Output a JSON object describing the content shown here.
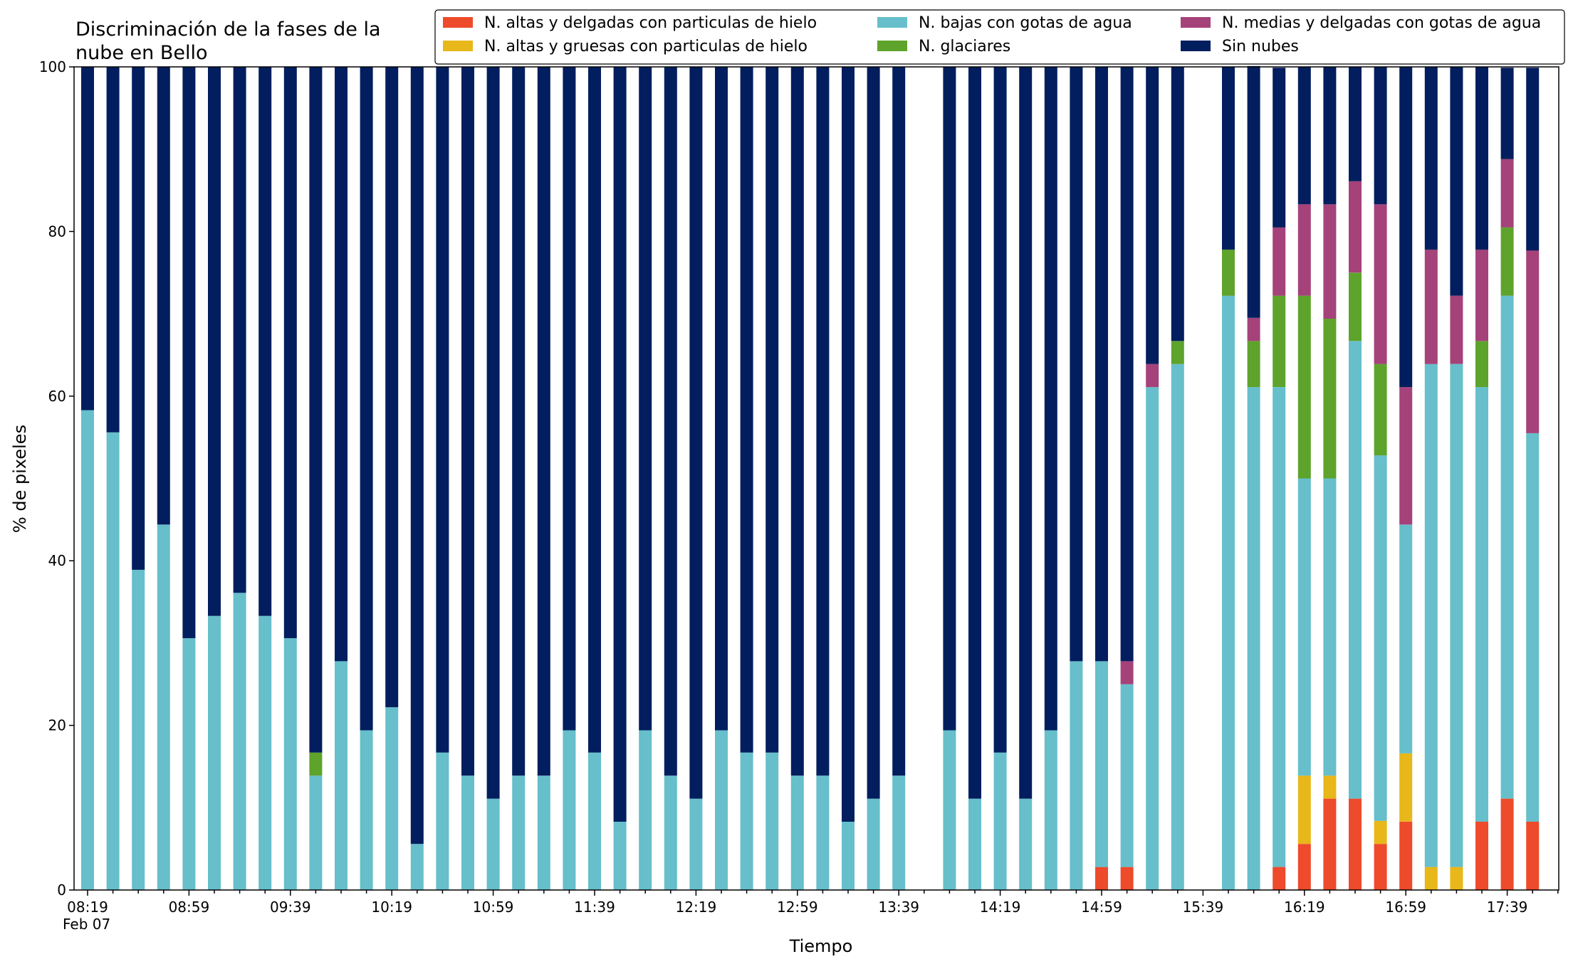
{
  "chart_data": {
    "type": "bar",
    "stacked": true,
    "title_lines": [
      "Discriminación de la fases de la",
      "nube en Bello"
    ],
    "xlabel": "Tiempo",
    "ylabel": "% de pixeles",
    "ylim": [
      0,
      100
    ],
    "yticks": [
      0,
      20,
      40,
      60,
      80,
      100
    ],
    "x_tick_labels": [
      "08:19",
      "08:59",
      "09:39",
      "10:19",
      "10:59",
      "11:39",
      "12:19",
      "12:59",
      "13:39",
      "14:19",
      "14:59",
      "15:39",
      "16:19",
      "16:59",
      "17:39"
    ],
    "x_date_label": "Feb 07",
    "grid": false,
    "legend_position": "top-right",
    "categories": [
      "08:19",
      "08:29",
      "08:39",
      "08:49",
      "08:59",
      "09:09",
      "09:19",
      "09:29",
      "09:39",
      "09:49",
      "09:59",
      "10:09",
      "10:19",
      "10:29",
      "10:39",
      "10:49",
      "10:59",
      "11:09",
      "11:19",
      "11:29",
      "11:39",
      "11:49",
      "11:59",
      "12:09",
      "12:19",
      "12:29",
      "12:39",
      "12:49",
      "12:59",
      "13:09",
      "13:19",
      "13:29",
      "13:39",
      "13:49",
      "13:59",
      "14:09",
      "14:19",
      "14:29",
      "14:39",
      "14:49",
      "14:59",
      "15:09",
      "15:19",
      "15:29",
      "15:39",
      "15:49",
      "15:59",
      "16:09",
      "16:19",
      "16:29",
      "16:39",
      "16:49",
      "16:59",
      "17:09",
      "17:19",
      "17:29",
      "17:39",
      "17:49"
    ],
    "series": [
      {
        "name": "N. altas y delgadas con particulas de hielo",
        "color": "#ee4a2c",
        "values": [
          0,
          0,
          0,
          0,
          0,
          0,
          0,
          0,
          0,
          0,
          0,
          0,
          0,
          0,
          0,
          0,
          0,
          0,
          0,
          0,
          0,
          0,
          0,
          0,
          0,
          0,
          0,
          0,
          0,
          0,
          0,
          0,
          0,
          null,
          0,
          0,
          0,
          0,
          0,
          0,
          2.8,
          2.8,
          0,
          0,
          null,
          0,
          0,
          2.8,
          5.6,
          11.1,
          11.1,
          5.6,
          8.3,
          0,
          0,
          8.3,
          11.1,
          8.3
        ]
      },
      {
        "name": "N. altas y gruesas con particulas de hielo",
        "color": "#e8b71a",
        "values": [
          0,
          0,
          0,
          0,
          0,
          0,
          0,
          0,
          0,
          0,
          0,
          0,
          0,
          0,
          0,
          0,
          0,
          0,
          0,
          0,
          0,
          0,
          0,
          0,
          0,
          0,
          0,
          0,
          0,
          0,
          0,
          0,
          0,
          null,
          0,
          0,
          0,
          0,
          0,
          0,
          0,
          0,
          0,
          0,
          null,
          0,
          0,
          0,
          8.3,
          2.8,
          0,
          2.8,
          8.3,
          2.8,
          2.8,
          0,
          0,
          0
        ]
      },
      {
        "name": "N. bajas con gotas de agua",
        "color": "#66bfcb",
        "values": [
          58.3,
          55.6,
          38.9,
          44.4,
          30.6,
          33.3,
          36.1,
          33.3,
          30.6,
          13.9,
          27.8,
          19.4,
          22.2,
          5.6,
          16.7,
          13.9,
          11.1,
          13.9,
          13.9,
          19.4,
          16.7,
          8.3,
          19.4,
          13.9,
          11.1,
          19.4,
          16.7,
          16.7,
          13.9,
          13.9,
          8.3,
          11.1,
          13.9,
          null,
          19.4,
          11.1,
          16.7,
          11.1,
          19.4,
          27.8,
          25.0,
          22.2,
          61.1,
          63.9,
          null,
          72.2,
          61.1,
          58.3,
          36.1,
          36.1,
          55.6,
          44.4,
          27.8,
          61.1,
          61.1,
          52.8,
          61.1,
          47.2
        ]
      },
      {
        "name": "N. glaciares",
        "color": "#5ea32b",
        "values": [
          0,
          0,
          0,
          0,
          0,
          0,
          0,
          0,
          0,
          2.8,
          0,
          0,
          0,
          0,
          0,
          0,
          0,
          0,
          0,
          0,
          0,
          0,
          0,
          0,
          0,
          0,
          0,
          0,
          0,
          0,
          0,
          0,
          0,
          null,
          0,
          0,
          0,
          0,
          0,
          0,
          0,
          0,
          0,
          2.8,
          null,
          5.6,
          5.6,
          11.1,
          22.2,
          19.4,
          8.3,
          11.1,
          0,
          0,
          0,
          5.6,
          8.3,
          0
        ]
      },
      {
        "name": "N. medias y delgadas con gotas de agua",
        "color": "#a5427a",
        "values": [
          0,
          0,
          0,
          0,
          0,
          0,
          0,
          0,
          0,
          0,
          0,
          0,
          0,
          0,
          0,
          0,
          0,
          0,
          0,
          0,
          0,
          0,
          0,
          0,
          0,
          0,
          0,
          0,
          0,
          0,
          0,
          0,
          0,
          null,
          0,
          0,
          0,
          0,
          0,
          0,
          0,
          2.8,
          2.8,
          0,
          null,
          0,
          2.8,
          8.3,
          11.1,
          13.9,
          11.1,
          19.4,
          16.7,
          13.9,
          8.3,
          11.1,
          8.3,
          22.2
        ]
      },
      {
        "name": "Sin nubes",
        "color": "#021e5e",
        "values": [
          41.7,
          44.4,
          61.1,
          55.6,
          69.4,
          66.7,
          63.9,
          66.7,
          69.4,
          83.3,
          72.2,
          80.6,
          77.8,
          94.4,
          83.3,
          86.1,
          88.9,
          86.1,
          86.1,
          80.6,
          83.3,
          91.7,
          80.6,
          86.1,
          88.9,
          80.6,
          83.3,
          83.3,
          86.1,
          86.1,
          91.7,
          88.9,
          86.1,
          null,
          80.6,
          88.9,
          83.3,
          88.9,
          80.6,
          72.2,
          72.2,
          72.2,
          36.1,
          33.3,
          null,
          22.2,
          30.6,
          19.4,
          16.7,
          16.7,
          13.9,
          16.7,
          38.9,
          22.2,
          27.8,
          22.2,
          11.1,
          22.2
        ]
      }
    ]
  }
}
